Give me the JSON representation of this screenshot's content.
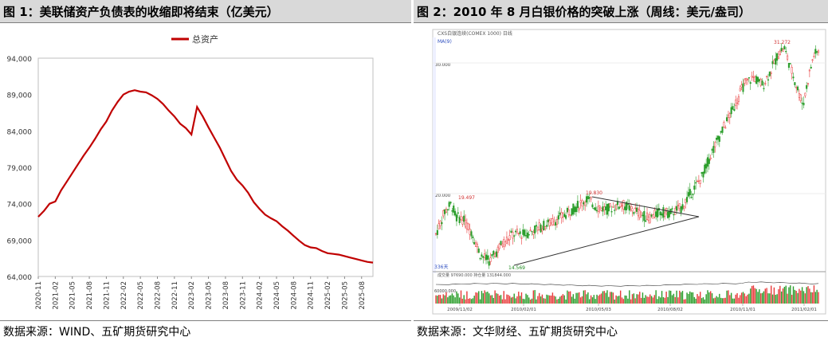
{
  "left_panel": {
    "title": "图 1：美联储资产负债表的收缩即将结束（亿美元）",
    "source": "数据来源：WIND、五矿期货研究中心"
  },
  "right_panel": {
    "title": "图 2：2010 年 8 月白银价格的突破上涨（周线：美元/盎司）",
    "source": "数据来源：文华财经、五矿期货研究中心",
    "header_text": "CXS白银连续(COMEX 1000)  日线",
    "indicator_label": "MA(9)",
    "price_labels": [
      "31.272",
      "19.830",
      "19.497",
      "14.569"
    ],
    "y_axis_labels": [
      "30.000",
      "20.000"
    ],
    "bottom_left_label": "336天",
    "volume_header": "成交量 97690.000  持仓量 131844.000",
    "volume_axis_label": "60000.000",
    "x_axis_labels": [
      "2009/11/02",
      "2010/02/01",
      "2010/05/03",
      "2010/08/02",
      "2010/11/01",
      "2011/02/01"
    ],
    "colors": {
      "up": "#e83a3a",
      "down": "#2a9d2a",
      "trend_line": "#333333"
    }
  },
  "chart_data": {
    "type": "line",
    "title": "",
    "legend": [
      "总资产"
    ],
    "legend_position": "top-center",
    "xlabel": "",
    "ylabel": "",
    "ylim": [
      64000,
      94000
    ],
    "y_ticks": [
      "64,000",
      "69,000",
      "74,000",
      "79,000",
      "84,000",
      "89,000",
      "94,000"
    ],
    "x_ticks": [
      "2020-11",
      "2021-02",
      "2021-05",
      "2021-08",
      "2021-11",
      "2022-02",
      "2022-05",
      "2022-08",
      "2022-11",
      "2023-02",
      "2023-05",
      "2023-08",
      "2023-11",
      "2024-02",
      "2024-05",
      "2024-08",
      "2024-11",
      "2025-02",
      "2025-05",
      "2025-08"
    ],
    "color": "#c00000",
    "series": [
      {
        "name": "总资产",
        "x": [
          "2020-11",
          "2020-12",
          "2021-01",
          "2021-02",
          "2021-03",
          "2021-04",
          "2021-05",
          "2021-06",
          "2021-07",
          "2021-08",
          "2021-09",
          "2021-10",
          "2021-11",
          "2021-12",
          "2022-01",
          "2022-02",
          "2022-03",
          "2022-04",
          "2022-05",
          "2022-06",
          "2022-07",
          "2022-08",
          "2022-09",
          "2022-10",
          "2022-11",
          "2022-12",
          "2023-01",
          "2023-02",
          "2023-03",
          "2023-04",
          "2023-05",
          "2023-06",
          "2023-07",
          "2023-08",
          "2023-09",
          "2023-10",
          "2023-11",
          "2023-12",
          "2024-01",
          "2024-02",
          "2024-03",
          "2024-04",
          "2024-05",
          "2024-06",
          "2024-07",
          "2024-08",
          "2024-09",
          "2024-10",
          "2024-11",
          "2024-12",
          "2025-01",
          "2025-02",
          "2025-03",
          "2025-04",
          "2025-05",
          "2025-06",
          "2025-07",
          "2025-08",
          "2025-09",
          "2025-10"
        ],
        "values": [
          72200,
          73000,
          74000,
          74300,
          75800,
          77000,
          78200,
          79400,
          80600,
          81700,
          82900,
          84200,
          85300,
          86800,
          88000,
          89000,
          89400,
          89600,
          89400,
          89300,
          88900,
          88400,
          87700,
          86800,
          86000,
          85000,
          84400,
          83500,
          87300,
          86000,
          84500,
          83100,
          81700,
          80100,
          78500,
          77300,
          76500,
          75500,
          74200,
          73300,
          72500,
          72000,
          71600,
          70900,
          70300,
          69600,
          68900,
          68300,
          68000,
          67900,
          67500,
          67200,
          67100,
          67000,
          66800,
          66600,
          66400,
          66200,
          66000,
          65900
        ]
      }
    ]
  }
}
